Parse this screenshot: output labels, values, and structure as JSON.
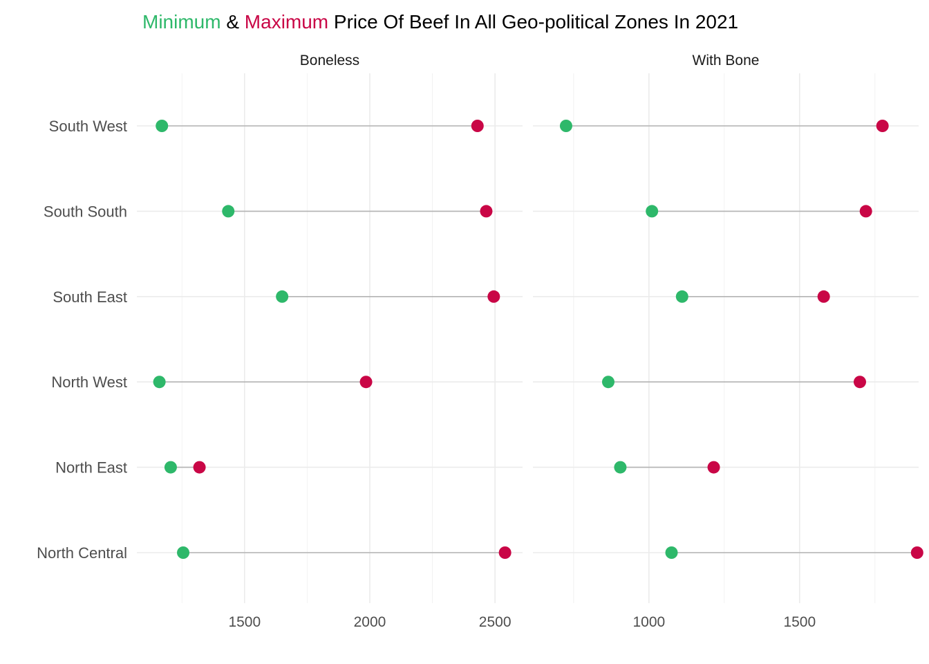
{
  "title": {
    "min_word": "Minimum",
    "amp": " & ",
    "max_word": "Maximum",
    "rest": " Price Of Beef In All Geo-political Zones In 2021"
  },
  "colors": {
    "minimum": "#2EB86A",
    "maximum": "#C90646",
    "segment": "#B3B3B3",
    "title": "#000000"
  },
  "chart_data": [
    {
      "type": "dumbbell",
      "title": "Boneless",
      "xlabel": "",
      "ylabel": "",
      "categories": [
        "South West",
        "South South",
        "South East",
        "North West",
        "North East",
        "North Central"
      ],
      "xlim": [
        1070,
        2610
      ],
      "xticks": [
        1500,
        2000,
        2500
      ],
      "grid": true,
      "series": [
        {
          "name": "Minimum",
          "values": [
            1170,
            1435,
            1650,
            1160,
            1205,
            1255
          ]
        },
        {
          "name": "Maximum",
          "values": [
            2430,
            2465,
            2495,
            1985,
            1320,
            2540
          ]
        }
      ]
    },
    {
      "type": "dumbbell",
      "title": "With Bone",
      "xlabel": "",
      "ylabel": "",
      "categories": [
        "South West",
        "South South",
        "South East",
        "North West",
        "North East",
        "North Central"
      ],
      "xlim": [
        615,
        1895
      ],
      "xticks": [
        1000,
        1500
      ],
      "grid": true,
      "series": [
        {
          "name": "Minimum",
          "values": [
            725,
            1010,
            1110,
            865,
            905,
            1075
          ]
        },
        {
          "name": "Maximum",
          "values": [
            1775,
            1720,
            1580,
            1700,
            1215,
            1890
          ]
        }
      ]
    }
  ]
}
